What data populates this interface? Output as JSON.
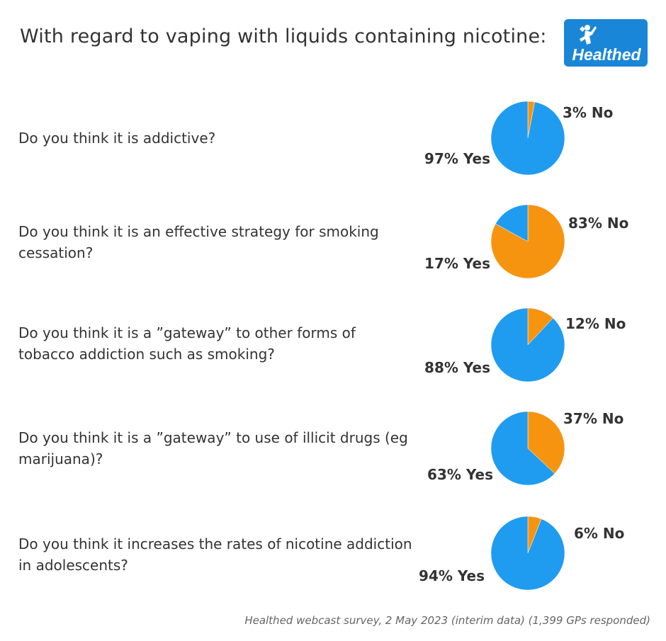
{
  "header": {
    "title": "With regard to vaping with liquids containing nicotine:",
    "logo_text": "Healthed"
  },
  "colors": {
    "yes": "#1f9cf0",
    "no": "#f7940f",
    "logo_bg": "#1a86d8"
  },
  "chart_data": {
    "type": "pie",
    "title": "With regard to vaping with liquids containing nicotine:",
    "categories": [
      "Yes",
      "No"
    ],
    "questions": [
      {
        "question": "Do you think it is addictive?",
        "yes": 97,
        "no": 3,
        "yes_label": "97% Yes",
        "no_label": "3% No"
      },
      {
        "question": "Do you think it is an effective strategy for smoking cessation?",
        "yes": 17,
        "no": 83,
        "yes_label": "17% Yes",
        "no_label": "83% No"
      },
      {
        "question": "Do you think it is a ”gateway” to other forms of tobacco addiction such as smoking?",
        "yes": 88,
        "no": 12,
        "yes_label": "88% Yes",
        "no_label": "12% No"
      },
      {
        "question": "Do you think it is a ”gateway” to use of illicit drugs (eg marijuana)?",
        "yes": 63,
        "no": 37,
        "yes_label": "63% Yes",
        "no_label": "37% No"
      },
      {
        "question": "Do you think it increases the rates of nicotine addiction in adolescents?",
        "yes": 94,
        "no": 6,
        "yes_label": "94% Yes",
        "no_label": "6% No"
      }
    ]
  },
  "footer": {
    "source": "Healthed webcast survey, 2 May 2023 (interim data) (1,399 GPs responded)"
  }
}
